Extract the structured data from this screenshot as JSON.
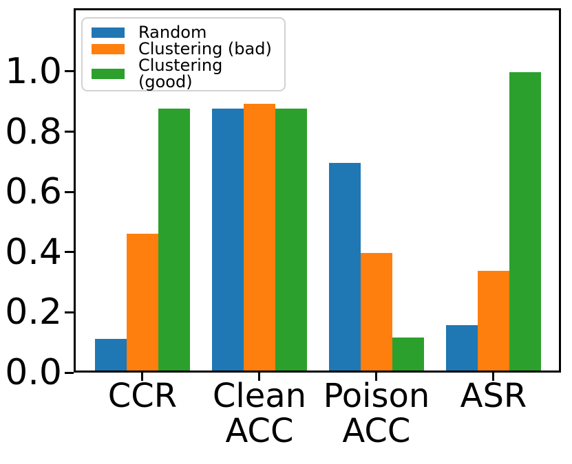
{
  "figure": {
    "background": "#ffffff",
    "axis_color": "#000000"
  },
  "chart_data": {
    "type": "bar",
    "categories": [
      "CCR",
      "Clean\nACC",
      "Poison\nACC",
      "ASR"
    ],
    "series": [
      {
        "name": "Random",
        "color": "#1f77b4",
        "values": [
          0.105,
          0.87,
          0.69,
          0.15
        ]
      },
      {
        "name": "Clustering (bad)",
        "color": "#ff7f0e",
        "values": [
          0.455,
          0.885,
          0.39,
          0.33
        ]
      },
      {
        "name": "Clustering (good)",
        "color": "#2ca02c",
        "values": [
          0.87,
          0.87,
          0.11,
          0.99
        ]
      }
    ],
    "title": "",
    "xlabel": "",
    "ylabel": "",
    "ylim": [
      0,
      1.21
    ],
    "yticks": [
      "0.0",
      "0.2",
      "0.4",
      "0.6",
      "0.8",
      "1.0"
    ],
    "legend_position": "upper left",
    "grid": false
  }
}
